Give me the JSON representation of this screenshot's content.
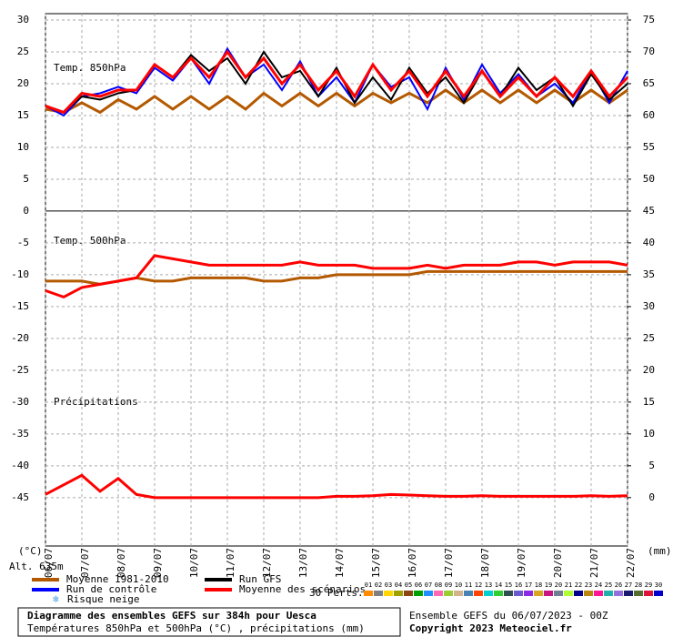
{
  "chart_data": {
    "type": "line",
    "panel_labels": [
      "Temp. 850hPa",
      "Temp. 500hPa",
      "Précipitations"
    ],
    "y_unit": "(°C)",
    "y2_unit": "(mm)",
    "altitude": "Alt. 635m",
    "xlim": [
      0,
      16
    ],
    "xticks": [
      {
        "value": 0,
        "label": "06/07"
      },
      {
        "value": 1,
        "label": "07/07"
      },
      {
        "value": 2,
        "label": "08/07"
      },
      {
        "value": 3,
        "label": "09/07"
      },
      {
        "value": 4,
        "label": "10/07"
      },
      {
        "value": 5,
        "label": "11/07"
      },
      {
        "value": 6,
        "label": "12/07"
      },
      {
        "value": 7,
        "label": "13/07"
      },
      {
        "value": 8,
        "label": "14/07"
      },
      {
        "value": 9,
        "label": "15/07"
      },
      {
        "value": 10,
        "label": "16/07"
      },
      {
        "value": 11,
        "label": "17/07"
      },
      {
        "value": 12,
        "label": "18/07"
      },
      {
        "value": 13,
        "label": "19/07"
      },
      {
        "value": 14,
        "label": "20/07"
      },
      {
        "value": 15,
        "label": "21/07"
      },
      {
        "value": 16,
        "label": "22/07"
      }
    ],
    "ylim": [
      -52.6,
      31
    ],
    "yticks": [
      30,
      25,
      20,
      15,
      10,
      5,
      0,
      -5,
      -10,
      -15,
      -20,
      -25,
      -30,
      -35,
      -40,
      -45
    ],
    "y2lim": [
      -7.6,
      76
    ],
    "y2ticks": [
      75,
      70,
      65,
      60,
      55,
      50,
      45,
      40,
      35,
      30,
      25,
      20,
      15,
      10,
      5,
      0
    ],
    "grid": true,
    "x": [
      0,
      0.5,
      1,
      1.5,
      2,
      2.5,
      3,
      3.5,
      4,
      4.5,
      5,
      5.5,
      6,
      6.5,
      7,
      7.5,
      8,
      8.5,
      9,
      9.5,
      10,
      10.5,
      11,
      11.5,
      12,
      12.5,
      13,
      13.5,
      14,
      14.5,
      15,
      15.5,
      16
    ],
    "series": [
      {
        "name": "Moyenne 1981-2010",
        "color": "#b35900",
        "width": 3,
        "values": [
          16,
          15.5,
          17,
          15.5,
          17.5,
          16,
          18,
          16,
          18,
          16,
          18,
          16,
          18.5,
          16.5,
          18.5,
          16.5,
          18.5,
          16.5,
          18.5,
          17,
          18.5,
          17,
          19,
          17,
          19,
          17,
          19,
          17,
          19,
          17,
          19,
          17,
          19
        ]
      },
      {
        "name": "Run de contrôle",
        "color": "#0000ff",
        "width": 2,
        "values": [
          16.5,
          15,
          18,
          18.5,
          19.5,
          18.5,
          22.5,
          20.5,
          24,
          20,
          25.5,
          21,
          23,
          19,
          23.5,
          18,
          21,
          17,
          23,
          19.5,
          21,
          16,
          22.5,
          17.5,
          23,
          18.5,
          21.5,
          18,
          20,
          17,
          22,
          17,
          22
        ]
      },
      {
        "name": "Run GFS",
        "color": "#000000",
        "width": 2,
        "values": [
          16.5,
          15.5,
          18,
          17.5,
          18.5,
          19,
          23,
          21,
          24.5,
          22,
          24,
          20,
          25,
          21,
          22,
          18,
          22.5,
          17,
          21,
          17.5,
          22.5,
          18.5,
          21,
          17,
          22,
          18,
          22.5,
          19,
          21,
          16.5,
          21.5,
          17.5,
          20
        ]
      },
      {
        "name": "Moyenne des scénarios",
        "color": "#ff0000",
        "width": 3,
        "values": [
          16.5,
          15.5,
          18.5,
          18,
          19,
          19,
          23,
          21,
          24,
          21,
          25,
          21,
          24,
          20,
          23,
          19,
          22,
          18,
          23,
          19,
          22,
          18,
          22,
          18,
          22,
          18,
          21,
          18,
          21,
          18,
          22,
          18,
          21
        ]
      },
      {
        "name": "Moyenne 1981-2010",
        "color": "#b35900",
        "width": 3,
        "values": [
          -11,
          -11,
          -11,
          -11.5,
          -11,
          -10.5,
          -11,
          -11,
          -10.5,
          -10.5,
          -10.5,
          -10.5,
          -11,
          -11,
          -10.5,
          -10.5,
          -10,
          -10,
          -10,
          -10,
          -10,
          -9.5,
          -9.5,
          -9.5,
          -9.5,
          -9.5,
          -9.5,
          -9.5,
          -9.5,
          -9.5,
          -9.5,
          -9.5,
          -9.5
        ]
      },
      {
        "name": "Moyenne des scénarios",
        "color": "#ff0000",
        "width": 3,
        "values": [
          -12.5,
          -13.5,
          -12,
          -11.5,
          -11,
          -10.5,
          -7,
          -7.5,
          -8,
          -8.5,
          -8.5,
          -8.5,
          -8.5,
          -8.5,
          -8,
          -8.5,
          -8.5,
          -8.5,
          -9,
          -9,
          -9,
          -8.5,
          -9,
          -8.5,
          -8.5,
          -8.5,
          -8,
          -8,
          -8.5,
          -8,
          -8,
          -8,
          -8.5
        ]
      },
      {
        "name": "Moyenne des scénarios",
        "color": "#ff0000",
        "width": 3,
        "axis": "y2",
        "values": [
          0.5,
          2,
          3.5,
          1,
          3,
          0.5,
          0,
          0,
          0,
          0,
          0,
          0,
          0,
          0,
          0,
          0,
          0.2,
          0.2,
          0.3,
          0.5,
          0.4,
          0.3,
          0.2,
          0.2,
          0.3,
          0.2,
          0.2,
          0.2,
          0.2,
          0.2,
          0.3,
          0.2,
          0.3
        ]
      }
    ],
    "snow_risk": "Risque neige",
    "perturbations": {
      "label": "30 Perts.",
      "members": [
        {
          "label": "01",
          "color": "#ff8c00"
        },
        {
          "label": "02",
          "color": "#808080"
        },
        {
          "label": "03",
          "color": "#ffd700"
        },
        {
          "label": "04",
          "color": "#a0a000"
        },
        {
          "label": "05",
          "color": "#8b4513"
        },
        {
          "label": "06",
          "color": "#00a000"
        },
        {
          "label": "07",
          "color": "#1e90ff"
        },
        {
          "label": "08",
          "color": "#ff69b4"
        },
        {
          "label": "09",
          "color": "#9acd32"
        },
        {
          "label": "10",
          "color": "#d2b48c"
        },
        {
          "label": "11",
          "color": "#4682b4"
        },
        {
          "label": "12",
          "color": "#ff4500"
        },
        {
          "label": "13",
          "color": "#00ced1"
        },
        {
          "label": "14",
          "color": "#32cd32"
        },
        {
          "label": "15",
          "color": "#2f4f4f"
        },
        {
          "label": "16",
          "color": "#6a5acd"
        },
        {
          "label": "17",
          "color": "#8a2be2"
        },
        {
          "label": "18",
          "color": "#daa520"
        },
        {
          "label": "19",
          "color": "#c71585"
        },
        {
          "label": "20",
          "color": "#708090"
        },
        {
          "label": "21",
          "color": "#adff2f"
        },
        {
          "label": "22",
          "color": "#00008b"
        },
        {
          "label": "23",
          "color": "#b8860b"
        },
        {
          "label": "24",
          "color": "#ff1493"
        },
        {
          "label": "25",
          "color": "#20b2aa"
        },
        {
          "label": "26",
          "color": "#9370db"
        },
        {
          "label": "27",
          "color": "#191970"
        },
        {
          "label": "28",
          "color": "#556b2f"
        },
        {
          "label": "29",
          "color": "#dc143c"
        },
        {
          "label": "30",
          "color": "#0000cd"
        }
      ]
    },
    "footer": {
      "title": "Diagramme des ensembles GEFS sur 384h pour Uesca",
      "subtitle": "Températures 850hPa et 500hPa (°C) , précipitations (mm)",
      "run": "Ensemble GEFS du 06/07/2023 - 00Z",
      "copyright": "Copyright 2023 Meteociel.fr"
    }
  }
}
